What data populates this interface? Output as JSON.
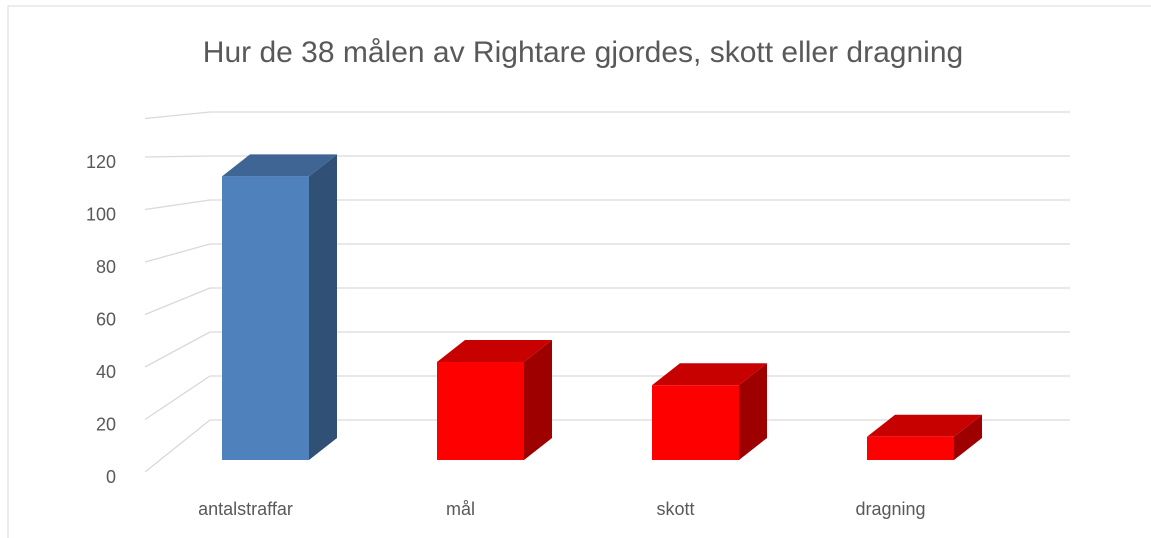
{
  "chart_data": {
    "type": "bar3d",
    "title": "Hur de 38 målen av Rightare gjordes,  skott eller dragning",
    "categories": [
      "antalstraffar",
      "mål",
      "skott",
      "dragning"
    ],
    "values": [
      110,
      38,
      29,
      9
    ],
    "colors": [
      "#4f81bd",
      "#ff0000",
      "#ff0000",
      "#ff0000"
    ],
    "ylim": [
      0,
      140
    ],
    "yticks": [
      0,
      20,
      40,
      60,
      80,
      100,
      120
    ],
    "grid": true
  }
}
